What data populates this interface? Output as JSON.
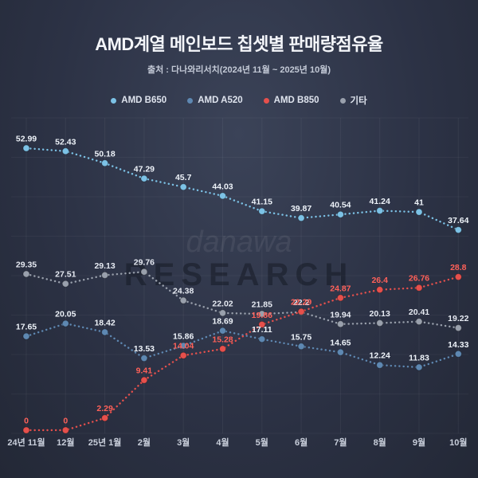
{
  "header": {
    "title": "AMD계열 메인보드 칩셋별 판매량점유율",
    "subtitle": "출처 : 다나와리서치(2024년 11월 ~ 2025년 10월)"
  },
  "watermark": {
    "line1": "danawa",
    "line2": "RESEARCH"
  },
  "chart_data": {
    "type": "line",
    "title": "AMD계열 메인보드 칩셋별 판매량점유율",
    "subtitle": "출처 : 다나와리서치(2024년 11월 ~ 2025년 10월)",
    "line_style": "dotted",
    "legend_position": "top",
    "grid": true,
    "ylim": [
      0,
      56
    ],
    "categories": [
      "24년 11월",
      "12월",
      "25년 1월",
      "2월",
      "3월",
      "4월",
      "5월",
      "6월",
      "7월",
      "8월",
      "9월",
      "10월"
    ],
    "series": [
      {
        "label": "AMD B650",
        "color": "#7cc2e6",
        "label_color": "#eef3f9",
        "values": [
          52.99,
          52.43,
          50.18,
          47.29,
          45.7,
          44.03,
          41.15,
          39.87,
          40.54,
          41.24,
          41,
          37.64
        ],
        "labels": [
          "52.99",
          "52.43",
          "50.18",
          "47.29",
          "45.7",
          "44.03",
          "41.15",
          "39.87",
          "40.54",
          "41.24",
          "41",
          "37.64"
        ]
      },
      {
        "label": "AMD A520",
        "color": "#5e88b2",
        "label_color": "#eef3f9",
        "values": [
          17.65,
          20.05,
          18.42,
          13.53,
          15.86,
          18.69,
          17.11,
          15.75,
          14.65,
          12.24,
          11.83,
          14.33
        ],
        "labels": [
          "17.65",
          "20.05",
          "18.42",
          "13.53",
          "15.86",
          "18.69",
          "17.11",
          "15.75",
          "14.65",
          "12.24",
          "11.83",
          "14.33"
        ]
      },
      {
        "label": "AMD B850",
        "color": "#e6504c",
        "label_color": "#ff6159",
        "values": [
          0,
          0,
          2.29,
          9.41,
          14.04,
          15.28,
          19.86,
          22.29,
          24.87,
          26.4,
          26.76,
          28.8
        ],
        "labels": [
          "0",
          "0",
          "2.29",
          "9.41",
          "14.04",
          "15.28",
          "19.86",
          "22.29",
          "24.87",
          "26.4",
          "26.76",
          "28.8"
        ]
      },
      {
        "label": "기타",
        "color": "#99a0ac",
        "label_color": "#e6eaf2",
        "values": [
          29.35,
          27.51,
          29.13,
          29.76,
          24.38,
          22.02,
          21.85,
          22.2,
          19.94,
          20.13,
          20.41,
          19.22
        ],
        "labels": [
          "29.35",
          "27.51",
          "29.13",
          "29.76",
          "24.38",
          "22.02",
          "21.85",
          "22.2",
          "19.94",
          "20.13",
          "20.41",
          "19.22"
        ]
      }
    ]
  }
}
